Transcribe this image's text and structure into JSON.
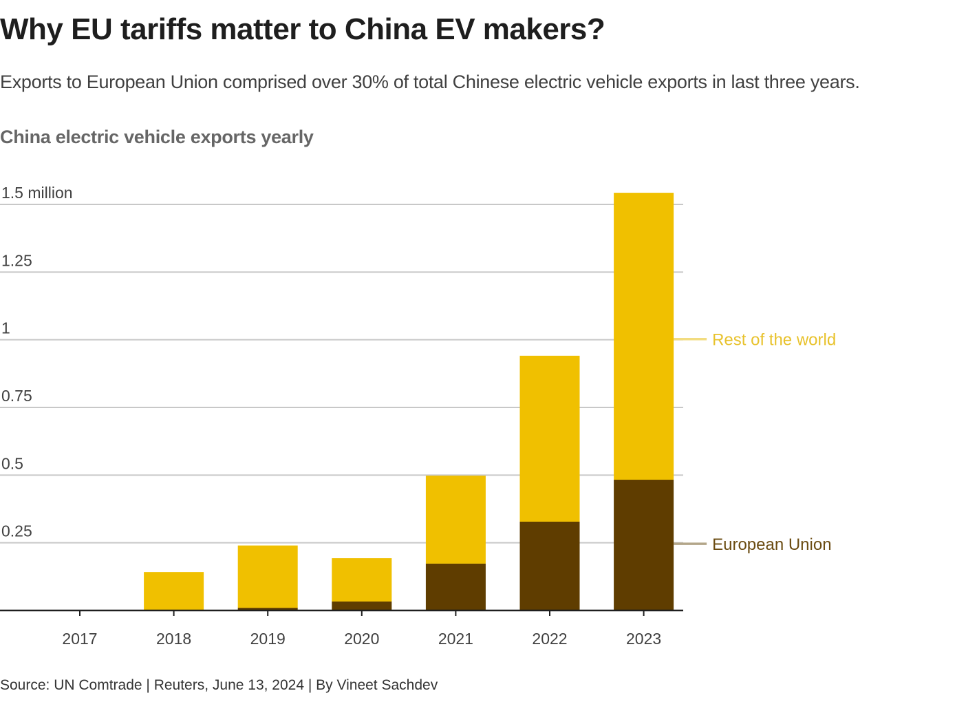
{
  "header": {
    "title": "Why EU tariffs matter to China EV makers?",
    "subtitle": "Exports to European Union comprised over 30% of total Chinese electric vehicle exports in last three years."
  },
  "footer": {
    "source": "Source: UN Comtrade | Reuters, June 13, 2024 | By Vineet Sachdev"
  },
  "chart_data": {
    "type": "bar",
    "stacked": true,
    "title": "China electric vehicle exports yearly",
    "xlabel": "",
    "ylabel": "",
    "unit": "million vehicles",
    "categories": [
      "2017",
      "2018",
      "2019",
      "2020",
      "2021",
      "2022",
      "2023"
    ],
    "series": [
      {
        "name": "European Union",
        "color": "#5f3d00",
        "values": [
          0,
          0,
          0.01,
          0.033,
          0.173,
          0.328,
          0.483
        ]
      },
      {
        "name": "Rest of the world",
        "color": "#f0c000",
        "values": [
          0,
          0.142,
          0.23,
          0.16,
          0.325,
          0.613,
          1.06
        ]
      }
    ],
    "ylim": [
      0,
      1.5
    ],
    "yticks": [
      0,
      0.25,
      0.5,
      0.75,
      1,
      1.25,
      1.5
    ],
    "ytick_labels": [
      "",
      "0.25",
      "0.5",
      "0.75",
      "1",
      "1.25",
      "1.5 million"
    ],
    "grid": true,
    "legend": {
      "placement": "right, inline labels",
      "entries": [
        {
          "name": "Rest of the world",
          "text_color": "#e8c22c",
          "line_color": "#f2dc80"
        },
        {
          "name": "European Union",
          "text_color": "#6b4c12",
          "line_color": "#b3a68a"
        }
      ]
    }
  }
}
